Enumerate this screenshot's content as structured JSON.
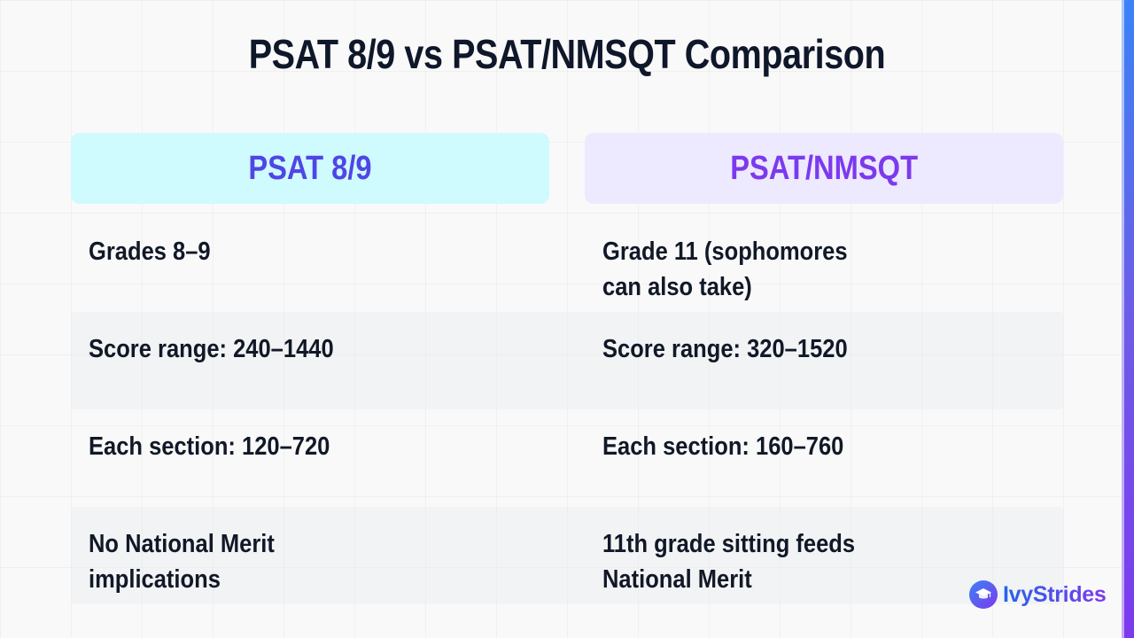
{
  "title": "PSAT 8/9 vs PSAT/NMSQT Comparison",
  "columns": [
    {
      "header": "PSAT 8/9",
      "color": "#4f46e5",
      "background": "#cffafe"
    },
    {
      "header": "PSAT/NMSQT",
      "color": "#7c3aed",
      "background": "#ede9fe"
    }
  ],
  "rows": [
    {
      "left": "Grades 8–9",
      "right": "Grade 11 (sophomores can also take)"
    },
    {
      "left": "Score range: 240–1440",
      "right": "Score range: 320–1520"
    },
    {
      "left": "Each section: 120–720",
      "right": "Each section: 160–760"
    },
    {
      "left": "No National Merit implications",
      "right": "11th grade sitting feeds National Merit"
    }
  ],
  "logo": {
    "text": "IvyStrides",
    "icon": "graduation-cap-icon"
  },
  "accent_colors": [
    "#3b82f6",
    "#7c3aed"
  ]
}
